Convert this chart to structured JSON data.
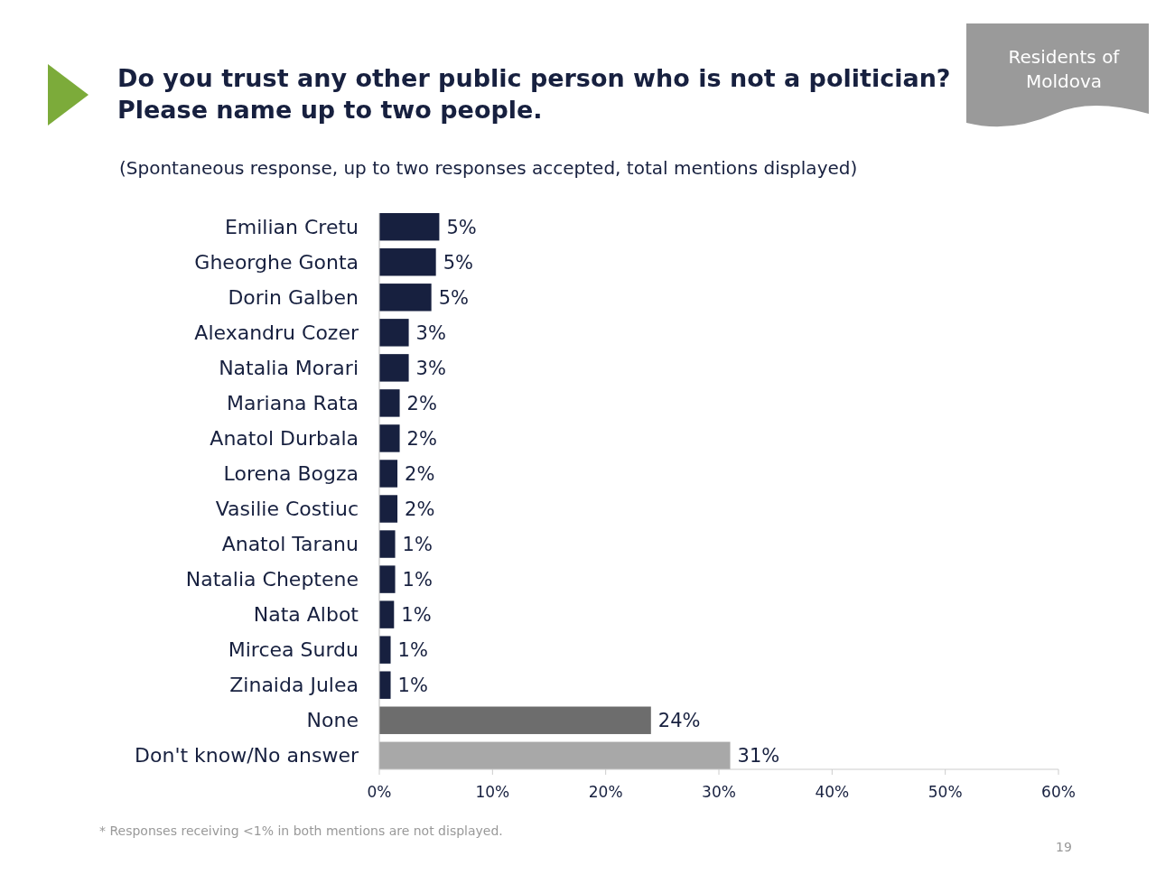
{
  "chart_data": {
    "type": "bar",
    "orientation": "horizontal",
    "title": "Do you trust any other public person who is not a politician?\nPlease name up to two people.",
    "subtitle": "(Spontaneous response, up to two responses accepted, total mentions displayed)",
    "categories": [
      "Emilian Cretu",
      "Gheorghe Gonta",
      "Dorin Galben",
      "Alexandru Cozer",
      "Natalia Morari",
      "Mariana Rata",
      "Anatol Durbala",
      "Lorena Bogza",
      "Vasilie Costiuc",
      "Anatol Taranu",
      "Natalia Cheptene",
      "Nata Albot",
      "Mircea Surdu",
      "Zinaida Julea",
      "None",
      "Don't know/No answer"
    ],
    "values": [
      5.3,
      5.0,
      4.6,
      2.6,
      2.6,
      1.8,
      1.8,
      1.6,
      1.6,
      1.4,
      1.4,
      1.3,
      1.0,
      1.0,
      24.0,
      31.0
    ],
    "value_labels": [
      "5%",
      "5%",
      "5%",
      "3%",
      "3%",
      "2%",
      "2%",
      "2%",
      "2%",
      "1%",
      "1%",
      "1%",
      "1%",
      "1%",
      "24%",
      "31%"
    ],
    "colors": [
      "#17203f",
      "#17203f",
      "#17203f",
      "#17203f",
      "#17203f",
      "#17203f",
      "#17203f",
      "#17203f",
      "#17203f",
      "#17203f",
      "#17203f",
      "#17203f",
      "#17203f",
      "#17203f",
      "#6d6d6d",
      "#a8a8a8"
    ],
    "xlim": [
      0,
      60
    ],
    "xticks": [
      {
        "value": 0,
        "label": "0%"
      },
      {
        "value": 10,
        "label": "10%"
      },
      {
        "value": 20,
        "label": "20%"
      },
      {
        "value": 30,
        "label": "30%"
      },
      {
        "value": 40,
        "label": "40%"
      },
      {
        "value": 50,
        "label": "50%"
      },
      {
        "value": 60,
        "label": "60%"
      }
    ],
    "grid": false,
    "annotations": [
      "Residents of Moldova",
      "* Responses receiving <1% in both mentions are not displayed.",
      "19"
    ]
  }
}
